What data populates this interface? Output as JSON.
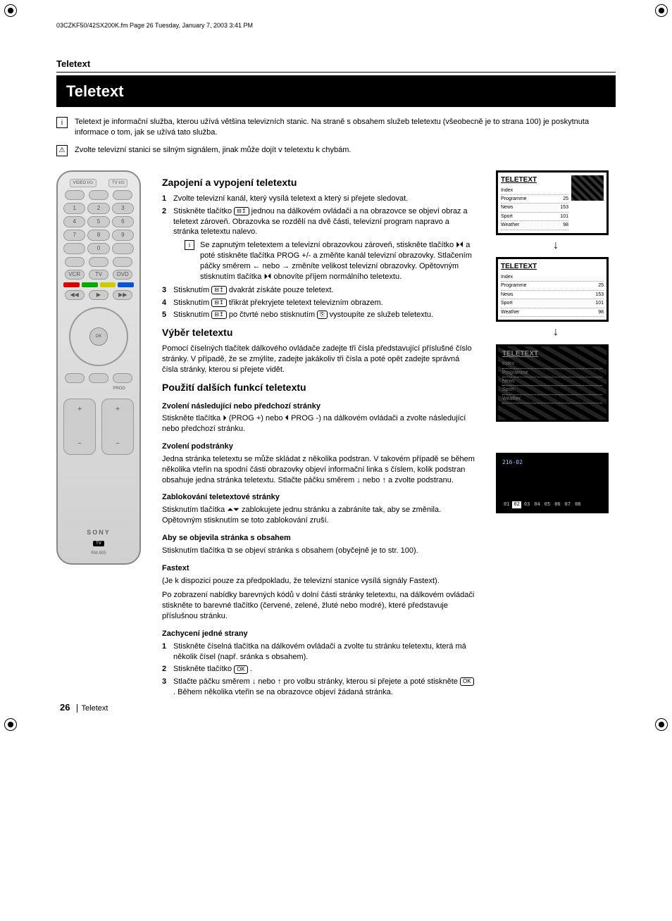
{
  "meta": {
    "header_line": "03CZKF50/42SX200K.fm  Page 26  Tuesday, January 7, 2003  3:41 PM"
  },
  "page": {
    "section_label": "Teletext",
    "title": "Teletext",
    "number": "26",
    "footer_label": "Teletext"
  },
  "intro": {
    "info": "Teletext je informační služba, kterou užívá většina televizních stanic. Na straně s obsahem služeb teletextu (všeobecně je to strana 100) je poskytnuta informace o tom, jak se užívá tato služba.",
    "warn": "Zvolte televizní stanici se silným signálem, jinak může dojít v teletextu k chybám."
  },
  "remote": {
    "top1": "VIDEO I/⏻",
    "top2": "TV I/⏻",
    "numpad": [
      "1",
      "2",
      "3",
      "4",
      "5",
      "6",
      "7",
      "8",
      "9",
      "",
      "0",
      ""
    ],
    "colors": [
      "#d00",
      "#0a0",
      "#cc0",
      "#05d"
    ],
    "center": "OK",
    "vol_plus": "+",
    "vol_minus": "−",
    "prog_label": "PROG",
    "prog_plus": "+",
    "prog_minus": "−",
    "brand": "SONY",
    "model_badge": "TV",
    "model": "RM-905"
  },
  "s1": {
    "title": "Zapojení a vypojení teletextu",
    "i1": "Zvolte televizní kanál, který vysílá teletext a který si přejete sledovat.",
    "i2a": "Stiskněte tlačítko ",
    "i2b": " jednou na dálkovém ovládači a na obrazovce se objeví obraz a teletext zároveň. Obrazovka se rozdělí na dvě části, televizní program napravo a stránka teletextu nalevo.",
    "i2_info": "Se zapnutým teletextem a televizní obrazovkou zároveň, stiskněte tlačítko ⏵⏴ a poté stiskněte tlačítka PROG +/- a změňte kanál televizní obrazovky. Stlačením páčky směrem ← nebo → změníte velikost televizní obrazovky. Opětovným stisknutím tlačítka ⏵⏴ obnovíte příjem normálního teletextu.",
    "i3a": "Stisknutím ",
    "i3b": " dvakrát získáte pouze teletext.",
    "i4a": "Stisknutím ",
    "i4b": " třikrát překryjete teletext televizním obrazem.",
    "i5a": "Stisknutím ",
    "i5b": " po čtvrté nebo stisknutím ",
    "i5c": " vystoupíte ze služeb teletextu."
  },
  "s2": {
    "title": "Výběr teletextu",
    "p": "Pomocí číselných tlačítek dálkového ovládače zadejte tři čísla představující příslušné číslo stránky. V případě, že se zmýlíte, zadejte jakákoliv tři čísla a poté opět zadejte správná čísla stránky, kterou si přejete vidět."
  },
  "s3": {
    "title": "Použití dalších funkcí teletextu",
    "sub1_h": "Zvolení následující nebo předchozí stránky",
    "sub1_p": "Stiskněte tlačítka ⏵ (PROG +) nebo ⏴ PROG -) na dálkovém ovládači a zvolte následující nebo předchozí stránku.",
    "sub2_h": "Zvolení podstránky",
    "sub2_p": "Jedna stránka teletextu se může skládat z několika podstran. V takovém případě se během několika vteřin na spodní části obrazovky objeví informační linka s číslem, kolik podstran obsahuje jedna stránka teletextu. Stlačte páčku směrem ↓ nebo ↑ a zvolte podstranu.",
    "sub3_h": "Zablokování teletextové stránky",
    "sub3_p": "Stisknutím tlačítka ⏶⏷ zablokujete jednu stránku a zabráníte tak, aby se změnila. Opětovným stisknutím se toto zablokování zruší.",
    "sub4_h": "Aby se objevila stránka s obsahem",
    "sub4_p": "Stisknutím tlačítka ⧉ se objeví stránka s obsahem (obyčejně je to str. 100).",
    "sub5_h": "Fastext",
    "sub5_p1": "(Je k dispozici pouze za předpokladu, že televizní stanice vysílá signály Fastext).",
    "sub5_p2": "Po zobrazení nabídky barevných kódů v dolní části stránky teletextu, na dálkovém ovládači stiskněte to barevné tlačítko (červené, zelené, žluté nebo modré), které představuje příslušnou stránku.",
    "sub6_h": "Zachycení jedné strany",
    "sub6_i1": "Stiskněte číselná tlačítka na dálkovém ovládači a zvolte tu stránku teletextu, která má několik čísel (např. sránka s obsahem).",
    "sub6_i2a": "Stiskněte tlačítko ",
    "sub6_i2b": " .",
    "sub6_i3a": "Stlačte páčku směrem ↓ nebo ↑ pro volbu stránky, kterou si přejete a poté stiskněte ",
    "sub6_i3b": " . Během několika vteřin se na obrazovce objeví žádaná stránka."
  },
  "screens": {
    "list_labels": {
      "index": "Index",
      "programme": "Programme",
      "news": "News",
      "sport": "Sport",
      "weather": "Weather"
    },
    "list_vals": {
      "index": "",
      "programme": "25",
      "news": "153",
      "sport": "101",
      "weather": "98"
    },
    "t1": "TELETEXT",
    "t2": "TELETEXT",
    "t3": "TELETEXT",
    "subpage_code": "216-02",
    "subpage_items": [
      "01",
      "02",
      "03",
      "04",
      "05",
      "06",
      "07",
      "08"
    ],
    "subpage_active_index": 1
  },
  "colors": {
    "black": "#000000",
    "page_bg": "#ffffff",
    "remote_body": "#d8d8d8"
  }
}
